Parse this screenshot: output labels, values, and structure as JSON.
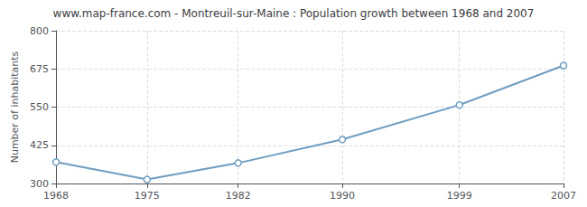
{
  "chart_data": {
    "type": "line",
    "title": "www.map-france.com - Montreuil-sur-Maine : Population growth between 1968 and 2007",
    "ylabel": "Number of inhabitants",
    "x": [
      1968,
      1975,
      1982,
      1990,
      1999,
      2007
    ],
    "values": [
      370,
      313,
      367,
      444,
      557,
      686
    ],
    "color": "#6e9dc0",
    "marker": "circle",
    "xlim": [
      1968,
      2007
    ],
    "xticks": [
      1968,
      1975,
      1982,
      1990,
      1999,
      2007
    ],
    "ylim": [
      300,
      800
    ],
    "yticks": [
      300,
      425,
      550,
      675,
      800
    ],
    "grid": true
  }
}
